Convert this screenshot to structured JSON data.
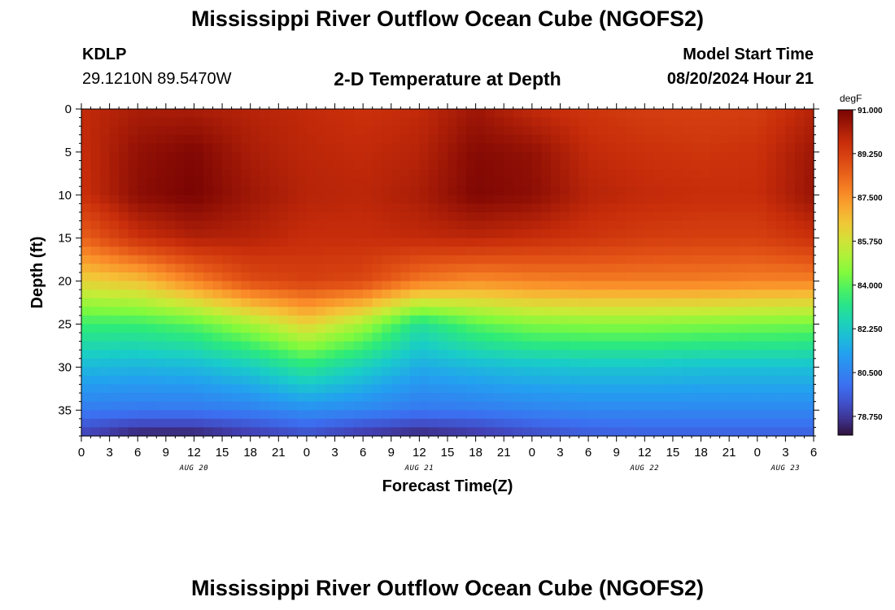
{
  "header": {
    "title": "Mississippi River Outflow Ocean Cube (NGOFS2)",
    "station": "KDLP",
    "coordinates": "29.1210N  89.5470W",
    "subtitle": "2-D Temperature at Depth",
    "model_start_label": "Model Start Time",
    "model_start_value": "08/20/2024 Hour 21"
  },
  "footer": {
    "title": "Mississippi River Outflow Ocean Cube (NGOFS2)"
  },
  "chart_data": {
    "type": "heatmap",
    "title": "2-D Temperature at Depth",
    "xlabel": "Forecast Time(Z)",
    "ylabel": "Depth (ft)",
    "x_unit": "hours since Aug 20 00Z",
    "xlim": [
      0,
      78
    ],
    "ylim": [
      38,
      0
    ],
    "x_tick_values": [
      0,
      3,
      6,
      9,
      12,
      15,
      18,
      21,
      24,
      27,
      30,
      33,
      36,
      39,
      42,
      45,
      48,
      51,
      54,
      57,
      60,
      63,
      66,
      69,
      72,
      75,
      78
    ],
    "x_tick_labels": [
      "0",
      "3",
      "6",
      "9",
      "12",
      "15",
      "18",
      "21",
      "0",
      "3",
      "6",
      "9",
      "12",
      "15",
      "18",
      "21",
      "0",
      "3",
      "6",
      "9",
      "12",
      "15",
      "18",
      "21",
      "0",
      "3",
      "6"
    ],
    "y_tick_values": [
      0,
      5,
      10,
      15,
      20,
      25,
      30,
      35
    ],
    "y_tick_labels": [
      "0",
      "5",
      "10",
      "15",
      "20",
      "25",
      "30",
      "35"
    ],
    "date_labels": [
      {
        "label": "AUG 20",
        "x": 12
      },
      {
        "label": "AUG 21",
        "x": 36
      },
      {
        "label": "AUG 22",
        "x": 60
      },
      {
        "label": "AUG 23",
        "x": 75
      }
    ],
    "colorbar": {
      "unit": "degF",
      "min": 78.0,
      "max": 91.0,
      "tick_values": [
        91.0,
        89.25,
        87.5,
        85.75,
        84.0,
        82.25,
        80.5,
        78.75
      ],
      "tick_labels": [
        "91.000",
        "89.250",
        "87.500",
        "85.750",
        "84.000",
        "82.250",
        "80.500",
        "78.750"
      ]
    },
    "temperature_grid": {
      "x_hours": [
        0,
        6,
        12,
        18,
        24,
        30,
        36,
        42,
        48,
        54,
        60,
        66,
        72,
        78
      ],
      "depths_ft": [
        0,
        5,
        10,
        15,
        20,
        25,
        30,
        35,
        38
      ],
      "values_degF": [
        [
          89.8,
          90.2,
          90.2,
          90.0,
          89.8,
          89.6,
          89.8,
          90.4,
          89.8,
          89.5,
          89.3,
          89.2,
          89.3,
          90.0
        ],
        [
          89.7,
          90.6,
          90.9,
          90.2,
          89.9,
          89.8,
          90.0,
          90.8,
          90.6,
          89.8,
          89.6,
          89.5,
          89.6,
          90.4
        ],
        [
          89.6,
          90.7,
          91.0,
          90.4,
          90.0,
          89.9,
          90.2,
          90.9,
          90.7,
          90.0,
          89.8,
          89.7,
          89.7,
          90.5
        ],
        [
          88.4,
          89.6,
          90.1,
          90.0,
          89.7,
          89.7,
          89.8,
          89.9,
          89.7,
          89.5,
          89.3,
          89.2,
          89.2,
          89.6
        ],
        [
          86.2,
          86.6,
          87.8,
          88.9,
          89.2,
          89.0,
          88.0,
          87.6,
          87.8,
          87.9,
          87.9,
          87.9,
          87.8,
          87.8
        ],
        [
          83.6,
          83.6,
          84.0,
          85.0,
          86.2,
          85.0,
          83.0,
          84.0,
          84.5,
          84.6,
          84.6,
          84.5,
          84.4,
          84.3
        ],
        [
          81.8,
          81.7,
          81.8,
          82.3,
          83.2,
          82.4,
          81.5,
          81.8,
          82.0,
          82.1,
          82.1,
          82.0,
          82.0,
          82.0
        ],
        [
          80.3,
          80.2,
          80.2,
          80.4,
          80.8,
          80.6,
          80.2,
          80.3,
          80.5,
          80.6,
          80.6,
          80.6,
          80.6,
          80.6
        ],
        [
          78.9,
          78.2,
          78.2,
          78.7,
          79.2,
          78.6,
          78.3,
          78.6,
          79.1,
          79.5,
          79.6,
          79.6,
          79.6,
          79.6
        ]
      ]
    }
  }
}
